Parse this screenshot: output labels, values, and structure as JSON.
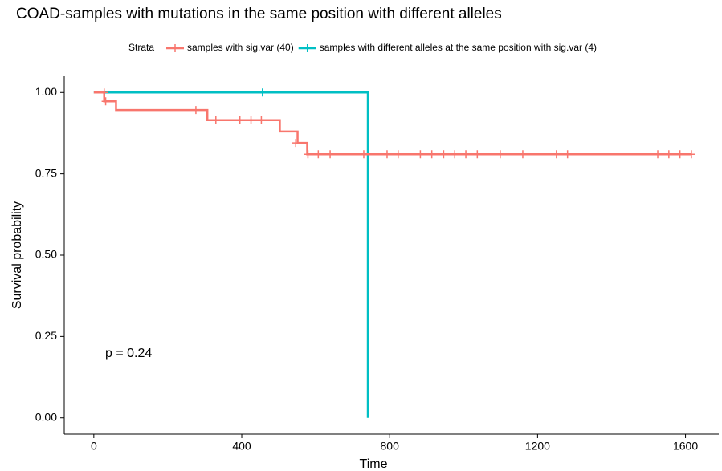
{
  "chart_data": {
    "type": "survival",
    "title": "COAD-samples with mutations in the same position with different alleles",
    "xlabel": "Time",
    "ylabel": "Survival probability",
    "legend_title": "Strata",
    "annotation": "p = 0.24",
    "xlim": [
      -80,
      1690
    ],
    "ylim": [
      -0.05,
      1.05
    ],
    "xticks": [
      0,
      400,
      800,
      1200,
      1600
    ],
    "yticks": [
      {
        "value": 0,
        "label": "0.00"
      },
      {
        "value": 0.25,
        "label": "0.25"
      },
      {
        "value": 0.5,
        "label": "0.50"
      },
      {
        "value": 0.75,
        "label": "0.75"
      },
      {
        "value": 1,
        "label": "1.00"
      }
    ],
    "series": [
      {
        "name": "samples with sig.var (40)",
        "color": "#F8766D",
        "x": [
          0,
          28,
          60,
          307,
          503,
          551,
          577,
          1616
        ],
        "values": [
          1,
          0.973,
          0.946,
          0.915,
          0.88,
          0.845,
          0.81,
          0.81
        ],
        "censor_x": [
          28,
          32,
          276,
          330,
          395,
          425,
          453,
          546,
          579,
          607,
          639,
          730,
          793,
          823,
          883,
          914,
          946,
          976,
          1006,
          1037,
          1099,
          1160,
          1251,
          1281,
          1525,
          1555,
          1585,
          1616
        ],
        "censor_values": [
          1,
          0.973,
          0.946,
          0.915,
          0.915,
          0.915,
          0.915,
          0.845,
          0.81,
          0.81,
          0.81,
          0.81,
          0.81,
          0.81,
          0.81,
          0.81,
          0.81,
          0.81,
          0.81,
          0.81,
          0.81,
          0.81,
          0.81,
          0.81,
          0.81,
          0.81,
          0.81,
          0.81
        ]
      },
      {
        "name": "samples with different alleles at the same position with sig.var (4)",
        "color": "#00BFC4",
        "x": [
          0,
          741
        ],
        "values": [
          1,
          0
        ],
        "censor_x": [
          456
        ],
        "censor_values": [
          1
        ]
      }
    ]
  }
}
